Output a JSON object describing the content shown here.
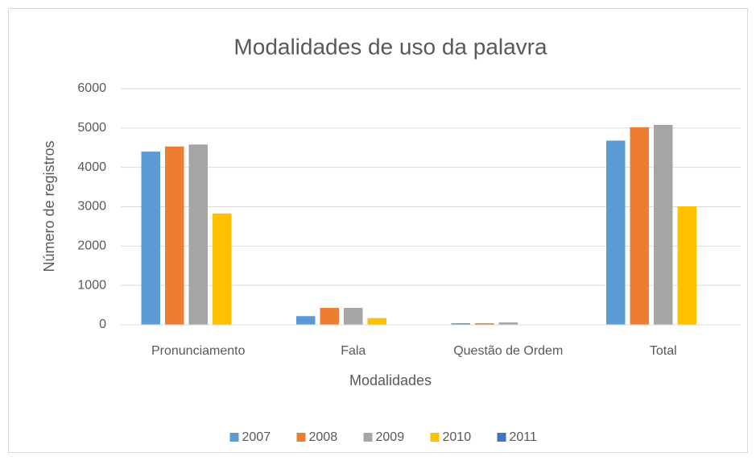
{
  "chart_data": {
    "type": "bar",
    "title": "Modalidades de uso da palavra",
    "x_label": "Modalidades",
    "y_label": "Número de registros",
    "categories": [
      "Pronunciamento",
      "Fala",
      "Questão de Ordem",
      "Total"
    ],
    "series": [
      {
        "name": "2007",
        "color": "#5b9bd5",
        "values": [
          4400,
          220,
          40,
          4680
        ]
      },
      {
        "name": "2008",
        "color": "#ed7d31",
        "values": [
          4530,
          430,
          40,
          5020
        ]
      },
      {
        "name": "2009",
        "color": "#a5a5a5",
        "values": [
          4580,
          430,
          60,
          5080
        ]
      },
      {
        "name": "2010",
        "color": "#ffc000",
        "values": [
          2830,
          170,
          0,
          3010
        ]
      },
      {
        "name": "2011",
        "color": "#4472c4",
        "values": [
          0,
          0,
          0,
          0
        ]
      }
    ],
    "ylim": [
      0,
      6000
    ],
    "yticks": [
      0,
      1000,
      2000,
      3000,
      4000,
      5000,
      6000
    ],
    "grid": true,
    "legend": "bottom"
  }
}
